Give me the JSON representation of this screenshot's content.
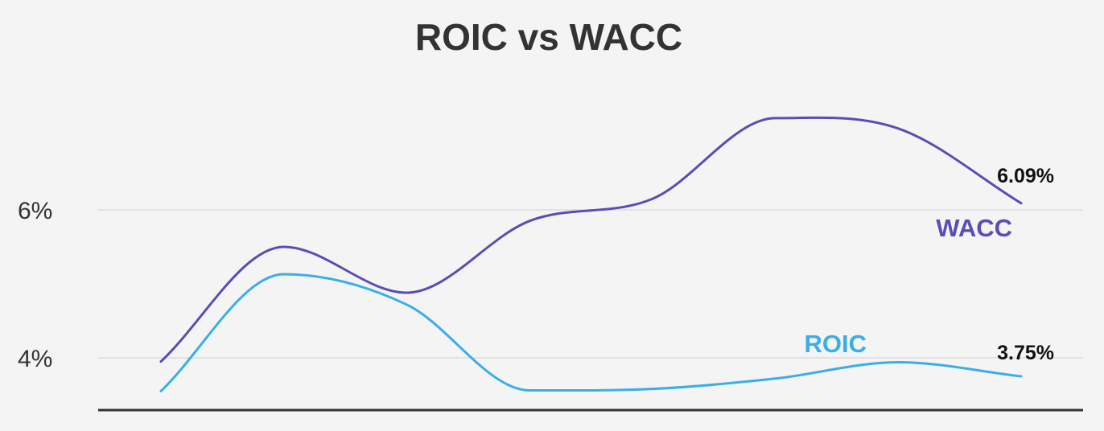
{
  "chart_data": {
    "type": "line",
    "title": "ROIC vs WACC",
    "xlabel": "",
    "ylabel": "",
    "x": [
      1,
      2,
      3,
      4,
      5,
      6,
      7,
      8
    ],
    "ylim": [
      3.3,
      8.3
    ],
    "y_ticks": [
      4,
      6
    ],
    "y_tick_labels": [
      "4%",
      "6%"
    ],
    "grid": true,
    "series": [
      {
        "name": "WACC",
        "color": "#5a4db5",
        "values": [
          3.95,
          5.5,
          4.88,
          5.85,
          6.15,
          7.24,
          7.1,
          6.09
        ],
        "end_label": "6.09%"
      },
      {
        "name": "ROIC",
        "color": "#3aaee8",
        "values": [
          3.55,
          5.13,
          4.72,
          3.56,
          3.58,
          3.72,
          3.94,
          3.75
        ],
        "end_label": "3.75%"
      }
    ]
  }
}
